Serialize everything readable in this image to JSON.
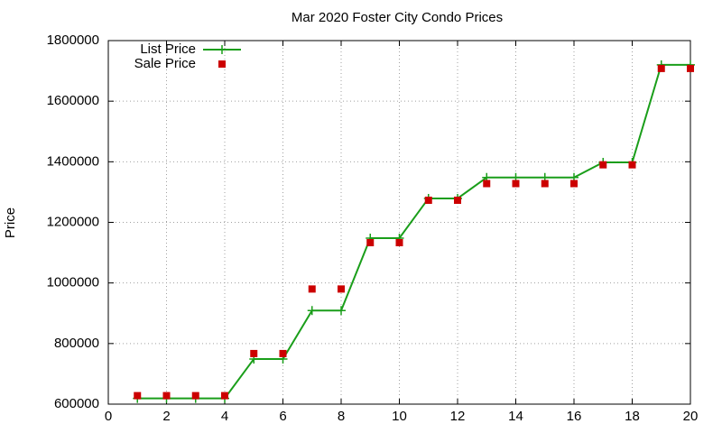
{
  "chart_data": {
    "type": "line",
    "title": "Mar 2020 Foster City Condo Prices",
    "y_label": "Price",
    "x": [
      1,
      2,
      3,
      4,
      5,
      6,
      7,
      8,
      9,
      10,
      11,
      12,
      13,
      14,
      15,
      16,
      17,
      18,
      19,
      20
    ],
    "series": [
      {
        "name": "List Price",
        "color": "#1a9e1a",
        "style": "linespoints",
        "values": [
          619000,
          619000,
          619000,
          619000,
          749000,
          749000,
          909000,
          909000,
          1148000,
          1148000,
          1279000,
          1279000,
          1348000,
          1348000,
          1348000,
          1348000,
          1398000,
          1398000,
          1720000,
          1720000
        ]
      },
      {
        "name": "Sale Price",
        "color": "#cc0000",
        "style": "points",
        "values": [
          628000,
          628000,
          628000,
          628000,
          767000,
          767000,
          980000,
          980000,
          1133000,
          1133000,
          1273000,
          1273000,
          1328000,
          1328000,
          1328000,
          1328000,
          1390000,
          1390000,
          1708000,
          1708000
        ]
      }
    ],
    "xlim": [
      0,
      20
    ],
    "xticks": [
      0,
      2,
      4,
      6,
      8,
      10,
      12,
      14,
      16,
      18,
      20
    ],
    "ylim": [
      600000,
      1800000
    ],
    "yticks": [
      600000,
      800000,
      1000000,
      1200000,
      1400000,
      1600000,
      1800000
    ],
    "grid": true,
    "legend": "top-left"
  }
}
